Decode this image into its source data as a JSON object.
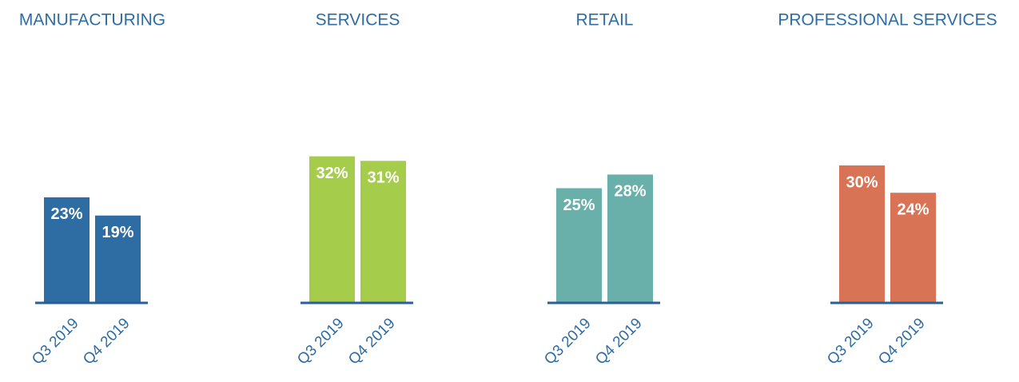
{
  "chart_data": [
    {
      "type": "bar",
      "title": "MANUFACTURING",
      "categories": [
        "Q3 2019",
        "Q4 2019"
      ],
      "values": [
        23,
        19
      ],
      "value_labels": [
        "23%",
        "19%"
      ],
      "color": "#2e6ca4"
    },
    {
      "type": "bar",
      "title": "SERVICES",
      "categories": [
        "Q3 2019",
        "Q4 2019"
      ],
      "values": [
        32,
        31
      ],
      "value_labels": [
        "32%",
        "31%"
      ],
      "color": "#a5cd4b"
    },
    {
      "type": "bar",
      "title": "RETAIL",
      "categories": [
        "Q3 2019",
        "Q4 2019"
      ],
      "values": [
        25,
        28
      ],
      "value_labels": [
        "25%",
        "28%"
      ],
      "color": "#68b0a9"
    },
    {
      "type": "bar",
      "title": "PROFESSIONAL SERVICES",
      "categories": [
        "Q3 2019",
        "Q4 2019"
      ],
      "values": [
        30,
        24
      ],
      "value_labels": [
        "30%",
        "24%"
      ],
      "color": "#d97356"
    }
  ]
}
